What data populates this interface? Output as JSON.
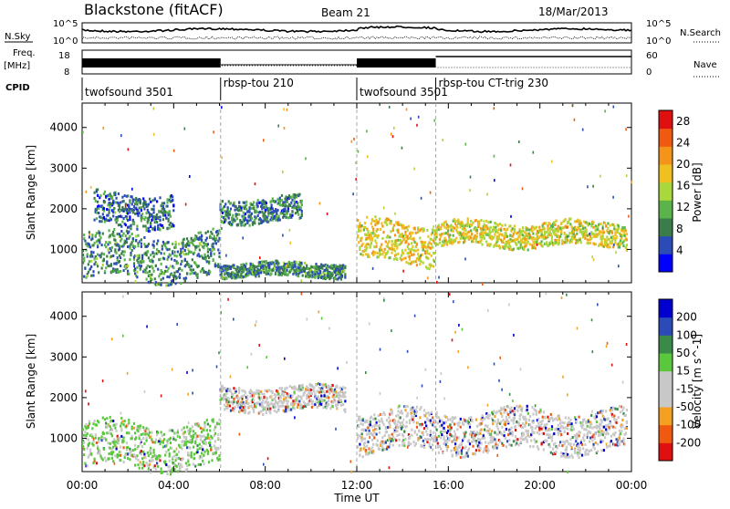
{
  "header": {
    "station": "Blackstone (fitACF)",
    "beam": "Beam 21",
    "date": "18/Mar/2013"
  },
  "top_panels": {
    "nsky_label": "N.Sky",
    "nsky_ticks": [
      "10^5",
      "10^0"
    ],
    "nsearch_label": "N.Search",
    "nsearch_ticks": [
      "10^5",
      "10^0"
    ],
    "freq_label_1": "Freq.",
    "freq_label_2": "[MHz]",
    "freq_ticks": [
      "18",
      "8"
    ],
    "nave_label": "Nave",
    "nave_ticks": [
      "60",
      "0"
    ],
    "cpid_label": "CPID",
    "cpid_segments": [
      {
        "name": "twofsound 3501",
        "start_hour": 0
      },
      {
        "name": "rbsp-tou 210",
        "start_hour": 6.05
      },
      {
        "name": "twofsound 3501",
        "start_hour": 12
      },
      {
        "name": "rbsp-tou CT-trig 230",
        "start_hour": 15.45
      }
    ],
    "cpid_boundaries_hours": [
      6.05,
      12.0,
      15.45
    ]
  },
  "x_axis": {
    "label": "Time UT",
    "ticks": [
      "00:00",
      "04:00",
      "08:00",
      "12:00",
      "16:00",
      "20:00",
      "00:00"
    ],
    "range_hours": [
      0,
      24
    ]
  },
  "chart_data": [
    {
      "type": "heatmap",
      "name": "power",
      "ylabel": "Slant Range [km]",
      "yticks": [
        "1000",
        "2000",
        "3000",
        "4000"
      ],
      "ylim": [
        180,
        4600
      ],
      "colorbar": {
        "label": "Power [dB]",
        "ticks": [
          "4",
          "8",
          "12",
          "16",
          "20",
          "24",
          "28"
        ],
        "range": [
          0,
          30
        ],
        "colors": [
          "#0000ff",
          "#2a4bb8",
          "#3a7c4a",
          "#5ab44a",
          "#a8d83c",
          "#f0c020",
          "#f49418",
          "#f05a10",
          "#e01010"
        ]
      },
      "features": [
        {
          "t0": 0.0,
          "t1": 6.0,
          "r0": 300,
          "r1": 1400,
          "level": 8
        },
        {
          "t0": 0.5,
          "t1": 4.0,
          "r0": 1600,
          "r1": 2400,
          "level": 6
        },
        {
          "t0": 6.0,
          "t1": 9.6,
          "r0": 1700,
          "r1": 2300,
          "level": 7
        },
        {
          "t0": 6.0,
          "t1": 11.5,
          "r0": 350,
          "r1": 700,
          "level": 8
        },
        {
          "t0": 12.0,
          "t1": 15.4,
          "r0": 700,
          "r1": 1700,
          "level": 18
        },
        {
          "t0": 15.4,
          "t1": 23.8,
          "r0": 1100,
          "r1": 1700,
          "level": 17
        }
      ]
    },
    {
      "type": "heatmap",
      "name": "velocity",
      "ylabel": "Slant Range [km]",
      "yticks": [
        "1000",
        "2000",
        "3000",
        "4000"
      ],
      "ylim": [
        180,
        4600
      ],
      "colorbar": {
        "label": "Velocity [m s^-1]",
        "ticks": [
          "200",
          "100",
          "50",
          "15",
          "-15",
          "-50",
          "-100",
          "-200"
        ],
        "range": [
          -250,
          250
        ],
        "colors": [
          "#e01010",
          "#f05a10",
          "#f4a020",
          "#c8c8c8",
          "#c8c8c8",
          "#5ac83c",
          "#3a8a4a",
          "#2a4bb8",
          "#0000d0"
        ]
      },
      "features": [
        {
          "t0": 0.0,
          "t1": 6.0,
          "r0": 300,
          "r1": 1400,
          "level": 30
        },
        {
          "t0": 6.0,
          "t1": 11.5,
          "r0": 1700,
          "r1": 2300,
          "level": 10
        },
        {
          "t0": 12.0,
          "t1": 23.8,
          "r0": 700,
          "r1": 1700,
          "level": 0
        }
      ]
    }
  ]
}
